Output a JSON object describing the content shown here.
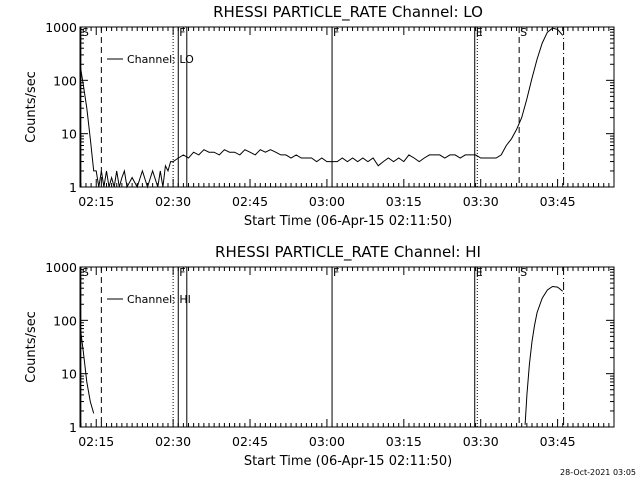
{
  "footer": {
    "timestamp": "28-Oct-2021 03:05"
  },
  "chart_data": [
    {
      "type": "line",
      "title": "RHESSI PARTICLE_RATE Channel: LO",
      "xlabel": "Start Time (06-Apr-15 02:11:50)",
      "ylabel": "Counts/sec",
      "yscale": "log",
      "ylim": [
        1,
        1000
      ],
      "xlim": [
        "02:11:50",
        "03:56:00"
      ],
      "x_ticks": [
        "02:15",
        "02:30",
        "02:45",
        "03:00",
        "03:15",
        "03:30",
        "03:45"
      ],
      "y_ticks": [
        "1",
        "10",
        "100",
        "1000"
      ],
      "legend": "Channel: LO",
      "markers": [
        {
          "label": "S",
          "time": "02:12",
          "style": "solid"
        },
        {
          "label": "",
          "time": "02:16",
          "style": "dashed"
        },
        {
          "label": "",
          "time": "02:30",
          "style": "dotted"
        },
        {
          "label": "F",
          "time": "02:31",
          "style": "solid"
        },
        {
          "label": "",
          "time": "02:32:40",
          "style": "solid"
        },
        {
          "label": "F",
          "time": "03:01",
          "style": "solid"
        },
        {
          "label": "E",
          "time": "03:28:50",
          "style": "solid"
        },
        {
          "label": "",
          "time": "03:29:20",
          "style": "dotted"
        },
        {
          "label": "S",
          "time": "03:37:30",
          "style": "dashed"
        },
        {
          "label": "",
          "time": "03:46:10",
          "style": "dashdot"
        }
      ],
      "series": [
        {
          "values": [
            [
              "02:11:50",
              200
            ],
            [
              "02:12:30",
              80
            ],
            [
              "02:13:10",
              30
            ],
            [
              "02:13:50",
              8
            ],
            [
              "02:14:30",
              2
            ],
            [
              "02:15:00",
              2
            ],
            [
              "02:15:30",
              1
            ],
            [
              "02:16:00",
              2
            ],
            [
              "02:16:30",
              1
            ],
            [
              "02:17:00",
              2
            ],
            [
              "02:17:30",
              1
            ],
            [
              "02:18:00",
              1.5
            ],
            [
              "02:18:30",
              1
            ],
            [
              "02:19:00",
              2
            ],
            [
              "02:19:30",
              1
            ],
            [
              "02:20:00",
              1.5
            ],
            [
              "02:20:30",
              2
            ],
            [
              "02:21:00",
              1
            ],
            [
              "02:22:00",
              1.5
            ],
            [
              "02:23:00",
              1
            ],
            [
              "02:24:00",
              2
            ],
            [
              "02:25:00",
              1
            ],
            [
              "02:26:00",
              2
            ],
            [
              "02:27:00",
              1
            ],
            [
              "02:27:30",
              2
            ],
            [
              "02:28:00",
              1
            ],
            [
              "02:28:30",
              2.5
            ],
            [
              "02:29:00",
              2
            ],
            [
              "02:29:30",
              3
            ],
            [
              "02:30:00",
              3
            ],
            [
              "02:31:00",
              3.5
            ],
            [
              "02:32:00",
              4
            ],
            [
              "02:33:00",
              3.5
            ],
            [
              "02:34:00",
              4.5
            ],
            [
              "02:35:00",
              4
            ],
            [
              "02:36:00",
              5
            ],
            [
              "02:37:00",
              4.5
            ],
            [
              "02:38:00",
              4.5
            ],
            [
              "02:39:00",
              4
            ],
            [
              "02:40:00",
              5
            ],
            [
              "02:41:00",
              4.5
            ],
            [
              "02:42:00",
              4.5
            ],
            [
              "02:43:00",
              4
            ],
            [
              "02:44:00",
              5
            ],
            [
              "02:45:00",
              4.5
            ],
            [
              "02:46:00",
              4
            ],
            [
              "02:47:00",
              5
            ],
            [
              "02:48:00",
              4.5
            ],
            [
              "02:49:00",
              5
            ],
            [
              "02:50:00",
              4.5
            ],
            [
              "02:51:00",
              4
            ],
            [
              "02:52:00",
              4
            ],
            [
              "02:53:00",
              3.5
            ],
            [
              "02:54:00",
              4
            ],
            [
              "02:55:00",
              3.5
            ],
            [
              "02:56:00",
              3.5
            ],
            [
              "02:57:00",
              3.5
            ],
            [
              "02:58:00",
              3
            ],
            [
              "02:59:00",
              3.5
            ],
            [
              "03:00:00",
              3
            ],
            [
              "03:01:00",
              3
            ],
            [
              "03:02:00",
              3
            ],
            [
              "03:03:00",
              3.5
            ],
            [
              "03:04:00",
              3
            ],
            [
              "03:05:00",
              3.5
            ],
            [
              "03:06:00",
              3
            ],
            [
              "03:07:00",
              3.5
            ],
            [
              "03:08:00",
              3
            ],
            [
              "03:09:00",
              3.5
            ],
            [
              "03:10:00",
              2.5
            ],
            [
              "03:11:00",
              3
            ],
            [
              "03:12:00",
              3.5
            ],
            [
              "03:13:00",
              3
            ],
            [
              "03:14:00",
              3.5
            ],
            [
              "03:15:00",
              3
            ],
            [
              "03:16:00",
              4
            ],
            [
              "03:17:00",
              3.5
            ],
            [
              "03:18:00",
              3
            ],
            [
              "03:19:00",
              3.5
            ],
            [
              "03:20:00",
              4
            ],
            [
              "03:21:00",
              4
            ],
            [
              "03:22:00",
              4
            ],
            [
              "03:23:00",
              3.5
            ],
            [
              "03:24:00",
              4
            ],
            [
              "03:25:00",
              4
            ],
            [
              "03:26:00",
              3.5
            ],
            [
              "03:27:00",
              4
            ],
            [
              "03:28:00",
              4
            ],
            [
              "03:29:00",
              4
            ],
            [
              "03:30:00",
              3.5
            ],
            [
              "03:31:00",
              3.5
            ],
            [
              "03:32:00",
              3.5
            ],
            [
              "03:33:00",
              3.5
            ],
            [
              "03:34:00",
              4
            ],
            [
              "03:35:00",
              6
            ],
            [
              "03:36:00",
              8
            ],
            [
              "03:37:00",
              12
            ],
            [
              "03:38:00",
              20
            ],
            [
              "03:39:00",
              45
            ],
            [
              "03:40:00",
              110
            ],
            [
              "03:41:00",
              250
            ],
            [
              "03:42:00",
              500
            ],
            [
              "03:43:00",
              800
            ],
            [
              "03:44:00",
              950
            ],
            [
              "03:45:00",
              900
            ],
            [
              "03:46:00",
              700
            ]
          ]
        }
      ]
    },
    {
      "type": "line",
      "title": "RHESSI PARTICLE_RATE Channel: HI",
      "xlabel": "Start Time (06-Apr-15 02:11:50)",
      "ylabel": "Counts/sec",
      "yscale": "log",
      "ylim": [
        1,
        1000
      ],
      "xlim": [
        "02:11:50",
        "03:56:00"
      ],
      "x_ticks": [
        "02:15",
        "02:30",
        "02:45",
        "03:00",
        "03:15",
        "03:30",
        "03:45"
      ],
      "y_ticks": [
        "1",
        "10",
        "100",
        "1000"
      ],
      "legend": "Channel: HI",
      "markers": [
        {
          "label": "S",
          "time": "02:12",
          "style": "solid"
        },
        {
          "label": "",
          "time": "02:16",
          "style": "dashed"
        },
        {
          "label": "",
          "time": "02:30",
          "style": "dotted"
        },
        {
          "label": "F",
          "time": "02:31",
          "style": "solid"
        },
        {
          "label": "",
          "time": "02:32:40",
          "style": "solid"
        },
        {
          "label": "F",
          "time": "03:01",
          "style": "solid"
        },
        {
          "label": "E",
          "time": "03:28:50",
          "style": "solid"
        },
        {
          "label": "",
          "time": "03:29:20",
          "style": "dotted"
        },
        {
          "label": "S",
          "time": "03:37:30",
          "style": "dashed"
        },
        {
          "label": "",
          "time": "03:46:10",
          "style": "dashdot"
        }
      ],
      "series": [
        {
          "values": [
            [
              "02:11:50",
              80
            ],
            [
              "02:12:30",
              25
            ],
            [
              "02:13:10",
              7
            ],
            [
              "02:13:50",
              3
            ],
            [
              "02:14:30",
              1.8
            ]
          ]
        },
        {
          "values": [
            [
              "03:38:40",
              1.1
            ],
            [
              "03:39:00",
              4
            ],
            [
              "03:39:30",
              15
            ],
            [
              "03:40:00",
              40
            ],
            [
              "03:40:30",
              80
            ],
            [
              "03:41:00",
              140
            ],
            [
              "03:42:00",
              260
            ],
            [
              "03:43:00",
              370
            ],
            [
              "03:44:00",
              430
            ],
            [
              "03:45:00",
              420
            ],
            [
              "03:46:00",
              350
            ]
          ]
        }
      ]
    }
  ]
}
